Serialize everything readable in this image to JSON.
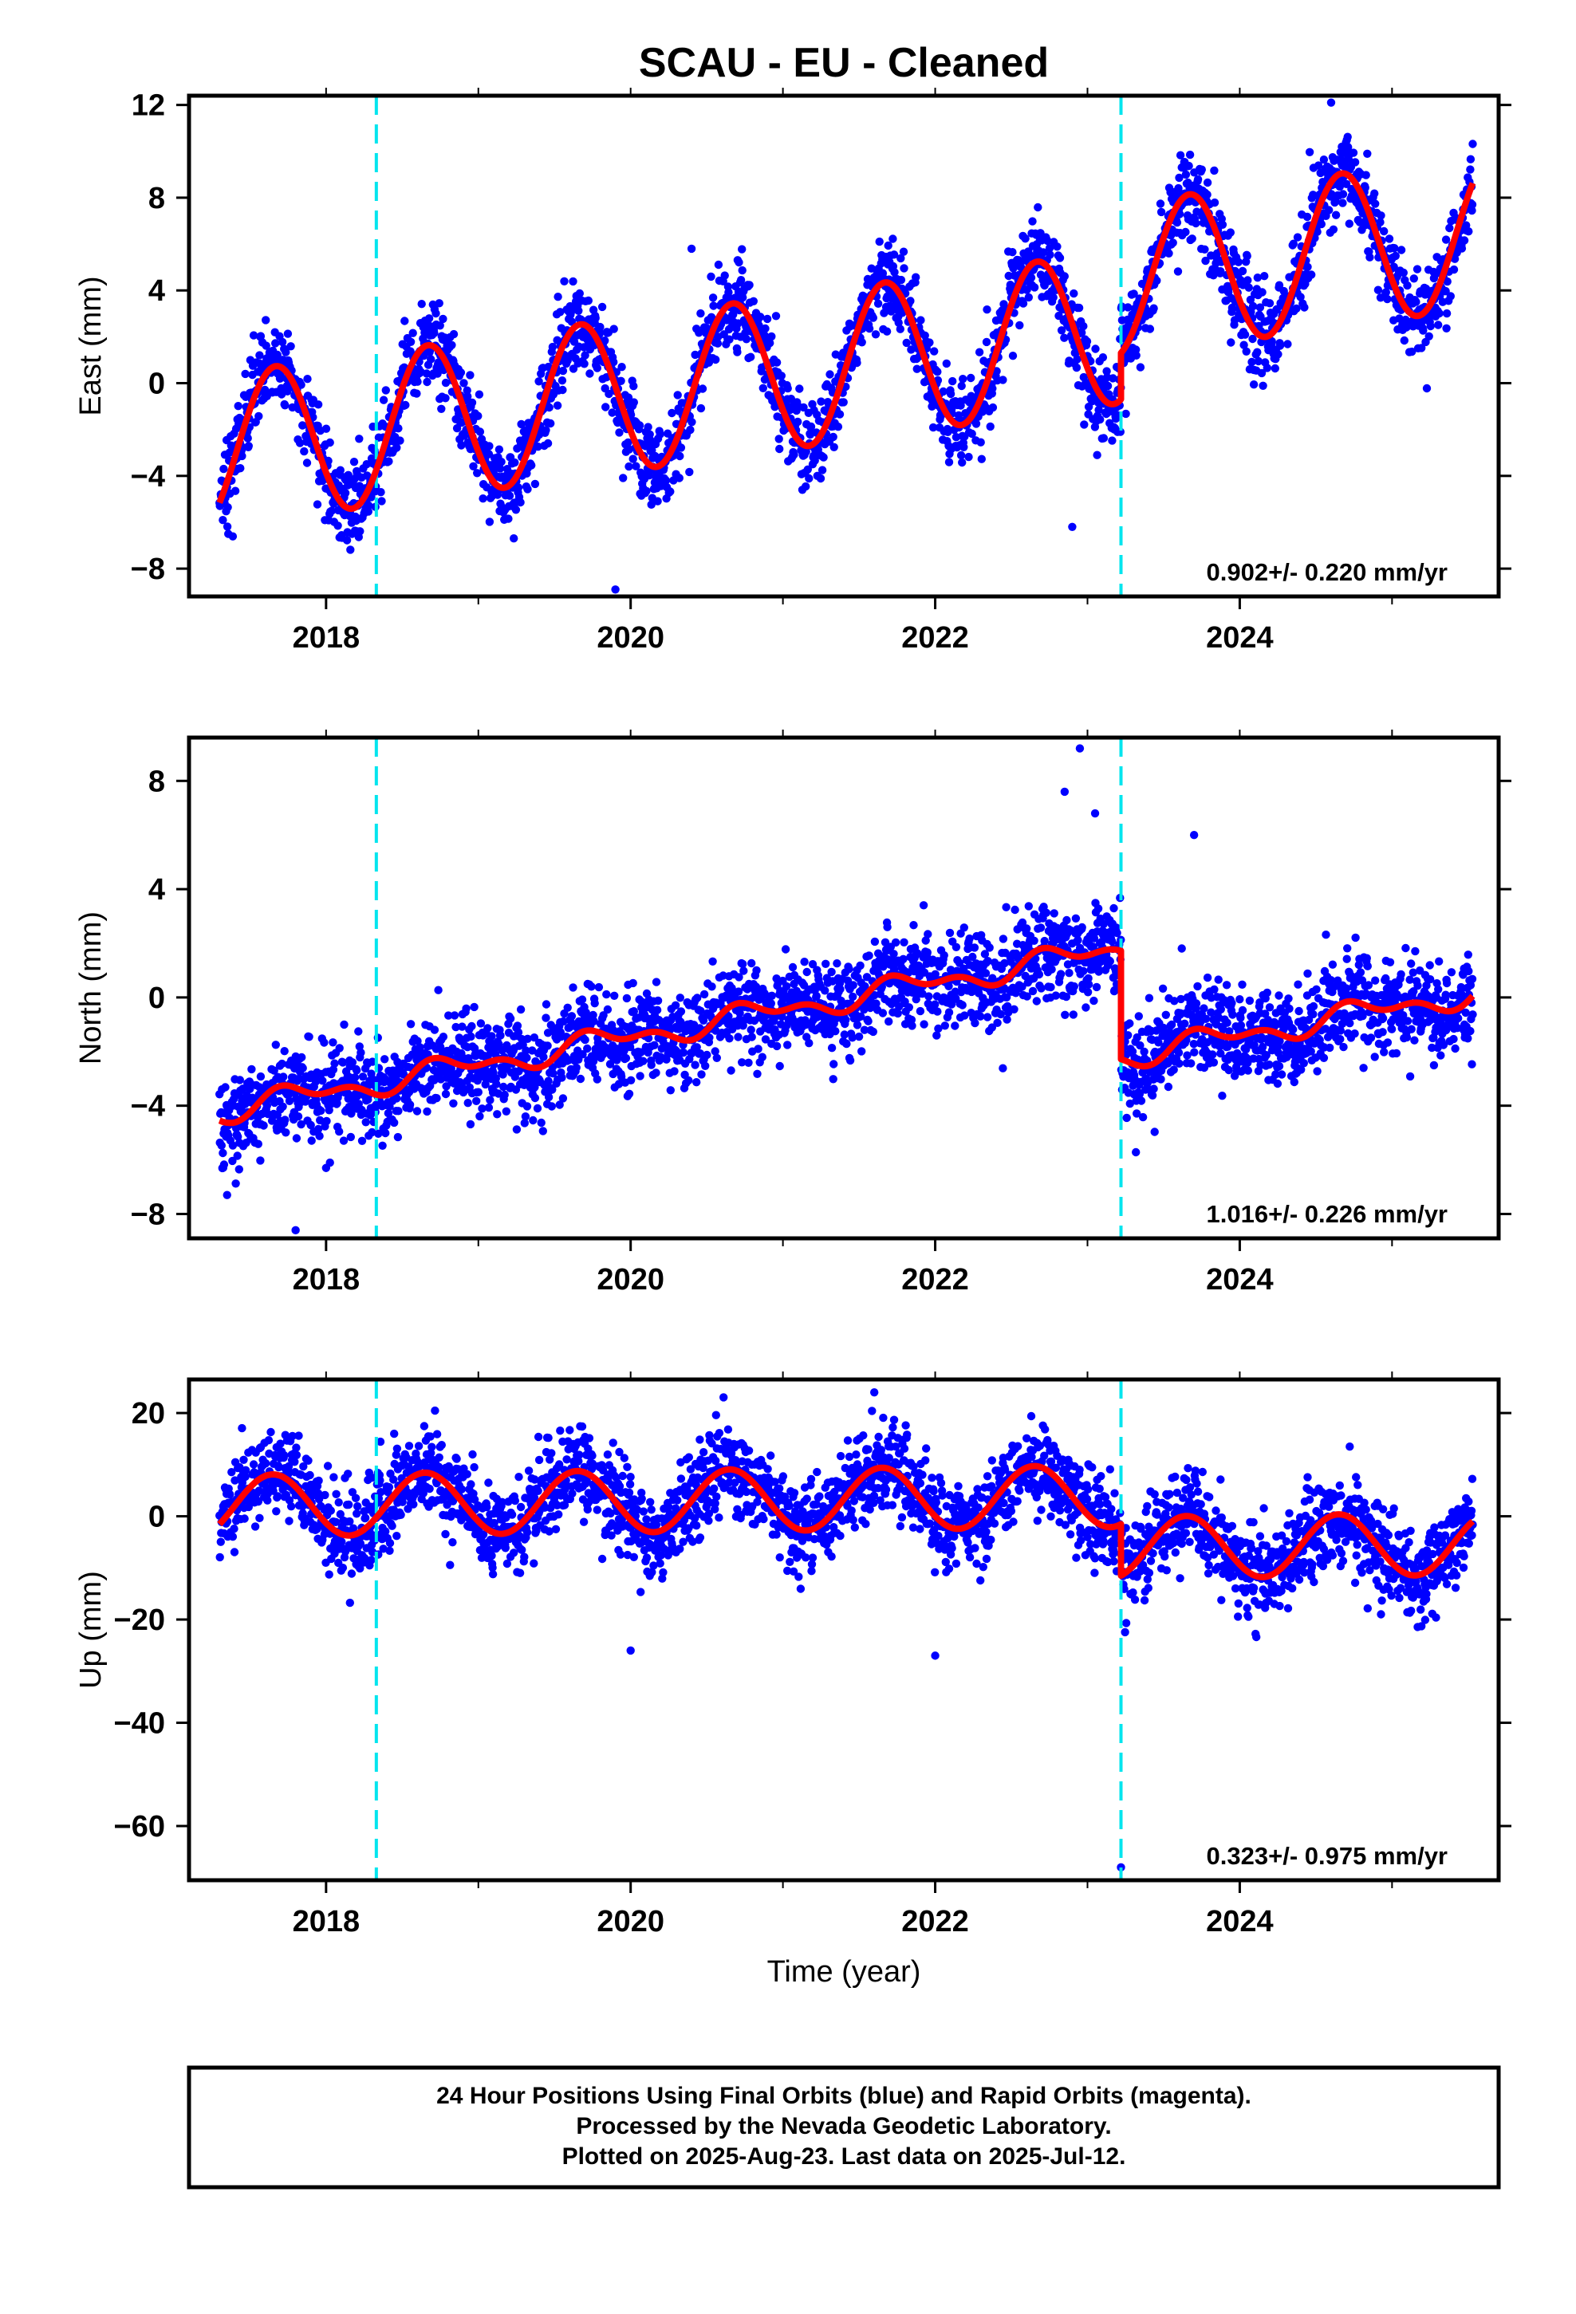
{
  "title": "SCAU  - EU - Cleaned",
  "xlabel": "Time (year)",
  "footer_lines": [
    "24 Hour Positions Using Final Orbits (blue) and Rapid Orbits (magenta).",
    "Processed by the Nevada Geodetic Laboratory.",
    "Plotted on 2025-Aug-23. Last data on 2025-Jul-12."
  ],
  "colors": {
    "points": "#0000ff",
    "model": "#ff0000",
    "steps": "#00e5ee",
    "frame": "#000000"
  },
  "chart_data": [
    {
      "type": "scatter",
      "ylabel": "East (mm)",
      "xlim": [
        2017.1,
        2025.7
      ],
      "ylim": [
        -9.2,
        12.4
      ],
      "yticks": [
        -8,
        -4,
        0,
        4,
        8,
        12
      ],
      "xticks": [
        2018,
        2020,
        2022,
        2024
      ],
      "rate_label": "0.902+/- 0.220 mm/yr",
      "step_years": [
        2018.33,
        2023.22
      ],
      "start_year": 2017.3,
      "end_year": 2025.53,
      "model": {
        "offset": -2.9,
        "rate": 0.902,
        "amplitude": 3.3,
        "phase_year": 2017.42,
        "semi_amp": 0,
        "step_after": 2.0,
        "noise_sd": 0.95
      },
      "outliers": [
        {
          "x": 2019.9,
          "y": -8.9
        },
        {
          "x": 2020.4,
          "y": 5.8
        },
        {
          "x": 2024.6,
          "y": 12.1
        },
        {
          "x": 2022.9,
          "y": -6.2
        }
      ]
    },
    {
      "type": "scatter",
      "ylabel": "North (mm)",
      "xlim": [
        2017.1,
        2025.7
      ],
      "ylim": [
        -8.9,
        9.6
      ],
      "yticks": [
        -8,
        -4,
        0,
        4,
        8
      ],
      "xticks": [
        2018,
        2020,
        2022,
        2024
      ],
      "rate_label": "1.016+/- 0.226 mm/yr",
      "step_years": [
        2018.33,
        2023.22
      ],
      "start_year": 2017.3,
      "end_year": 2025.53,
      "model": {
        "offset": -4.2,
        "rate": 1.016,
        "amplitude": 0.35,
        "phase_year": 2017.55,
        "semi_amp": 0.25,
        "step_after": -4.0,
        "noise_sd": 0.85
      },
      "outliers": [
        {
          "x": 2022.95,
          "y": 9.2
        },
        {
          "x": 2022.85,
          "y": 7.6
        },
        {
          "x": 2023.05,
          "y": 6.8
        },
        {
          "x": 2023.7,
          "y": 6.0
        },
        {
          "x": 2017.8,
          "y": -8.6
        },
        {
          "x": 2017.35,
          "y": -7.3
        },
        {
          "x": 2018.0,
          "y": -6.3
        }
      ]
    },
    {
      "type": "scatter",
      "ylabel": "Up (mm)",
      "xlim": [
        2017.1,
        2025.7
      ],
      "ylim": [
        -70.5,
        26.5
      ],
      "yticks": [
        -60,
        -40,
        -20,
        0,
        20
      ],
      "xticks": [
        2018,
        2020,
        2022,
        2024
      ],
      "rate_label": "0.323+/- 0.975 mm/yr",
      "step_years": [
        2018.33,
        2023.22
      ],
      "start_year": 2017.3,
      "end_year": 2025.53,
      "model": {
        "offset": 2.0,
        "rate": 0.323,
        "amplitude": 6.0,
        "phase_year": 2017.4,
        "semi_amp": 0,
        "step_after": -10.0,
        "noise_sd": 4.3
      },
      "outliers": [
        {
          "x": 2023.22,
          "y": -68.0
        },
        {
          "x": 2020.0,
          "y": -26.0
        },
        {
          "x": 2022.0,
          "y": -27.0
        },
        {
          "x": 2021.6,
          "y": 24.0
        }
      ]
    }
  ]
}
